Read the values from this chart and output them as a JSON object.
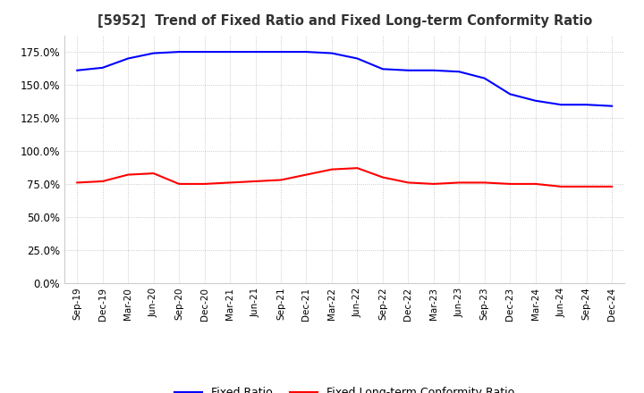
{
  "title": "[5952]  Trend of Fixed Ratio and Fixed Long-term Conformity Ratio",
  "x_labels": [
    "Sep-19",
    "Dec-19",
    "Mar-20",
    "Jun-20",
    "Sep-20",
    "Dec-20",
    "Mar-21",
    "Jun-21",
    "Sep-21",
    "Dec-21",
    "Mar-22",
    "Jun-22",
    "Sep-22",
    "Dec-22",
    "Mar-23",
    "Jun-23",
    "Sep-23",
    "Dec-23",
    "Mar-24",
    "Jun-24",
    "Sep-24",
    "Dec-24"
  ],
  "fixed_ratio": [
    161,
    163,
    170,
    174,
    175,
    175,
    175,
    175,
    175,
    175,
    174,
    170,
    162,
    161,
    161,
    160,
    155,
    143,
    138,
    135,
    135,
    134
  ],
  "fixed_lt_ratio": [
    76,
    77,
    82,
    83,
    75,
    75,
    76,
    77,
    78,
    82,
    86,
    87,
    80,
    76,
    75,
    76,
    76,
    75,
    75,
    73,
    73,
    73
  ],
  "ylim": [
    0,
    187.5
  ],
  "yticks": [
    0,
    25,
    50,
    75,
    100,
    125,
    150,
    175
  ],
  "fixed_ratio_color": "#0000ff",
  "fixed_lt_ratio_color": "#ff0000",
  "background_color": "#ffffff",
  "grid_color": "#bbbbbb",
  "legend_labels": [
    "Fixed Ratio",
    "Fixed Long-term Conformity Ratio"
  ]
}
